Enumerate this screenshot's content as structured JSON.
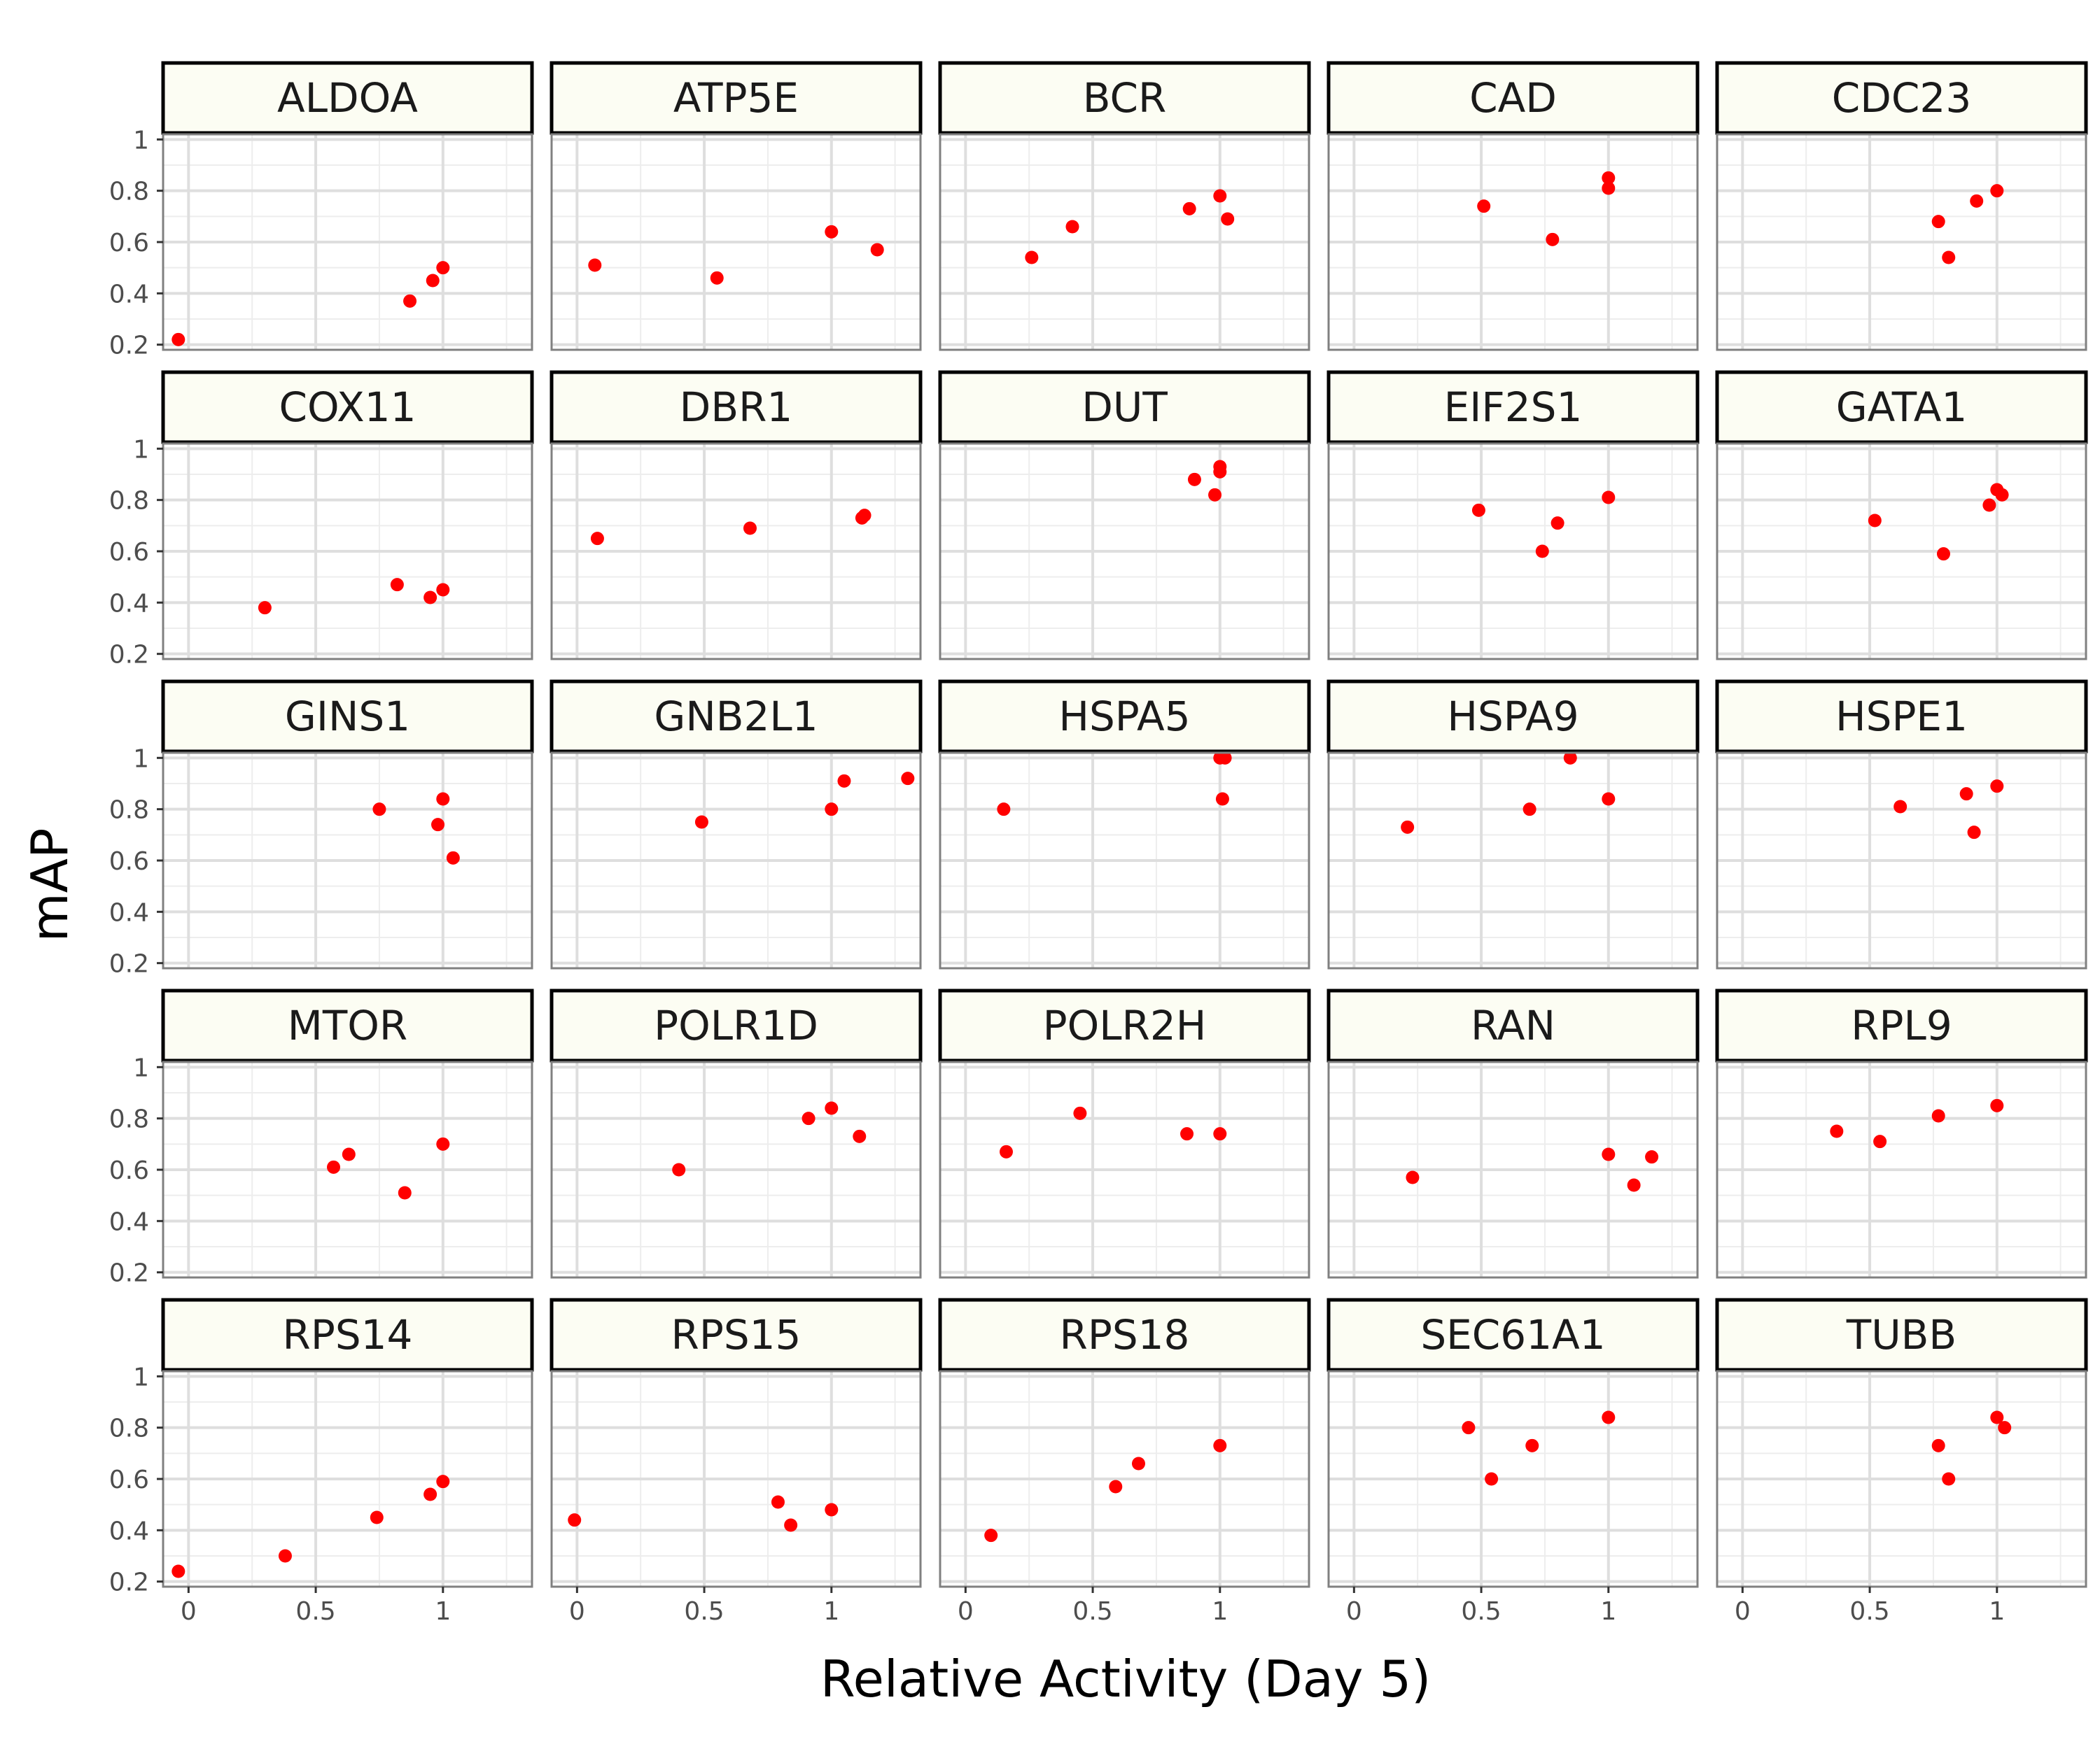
{
  "chart_data": {
    "type": "scatter",
    "xlabel": "Relative Activity (Day 5)",
    "ylabel": "mAP",
    "xlim": [
      -0.1,
      1.35
    ],
    "ylim": [
      0.18,
      1.02
    ],
    "x_ticks": [
      0,
      0.5,
      1
    ],
    "x_tick_labels": [
      "0",
      "0.5",
      "1"
    ],
    "y_ticks": [
      0.2,
      0.4,
      0.6,
      0.8,
      1
    ],
    "y_tick_labels": [
      "0.2",
      "0.4",
      "0.6",
      "0.8",
      "1"
    ],
    "grid": true,
    "point_color": "#ff0000",
    "strip_fill": "#fcfdf3",
    "panels": [
      {
        "name": "ALDOA",
        "points": [
          {
            "x": -0.04,
            "y": 0.22
          },
          {
            "x": 0.87,
            "y": 0.37
          },
          {
            "x": 0.96,
            "y": 0.45
          },
          {
            "x": 1.0,
            "y": 0.5
          }
        ]
      },
      {
        "name": "ATP5E",
        "points": [
          {
            "x": 0.07,
            "y": 0.51
          },
          {
            "x": 0.55,
            "y": 0.46
          },
          {
            "x": 1.0,
            "y": 0.64
          },
          {
            "x": 1.18,
            "y": 0.57
          }
        ]
      },
      {
        "name": "BCR",
        "points": [
          {
            "x": 0.26,
            "y": 0.54
          },
          {
            "x": 0.42,
            "y": 0.66
          },
          {
            "x": 0.88,
            "y": 0.73
          },
          {
            "x": 1.0,
            "y": 0.78
          },
          {
            "x": 1.03,
            "y": 0.69
          }
        ]
      },
      {
        "name": "CAD",
        "points": [
          {
            "x": 0.51,
            "y": 0.74
          },
          {
            "x": 0.78,
            "y": 0.61
          },
          {
            "x": 1.0,
            "y": 0.85
          },
          {
            "x": 1.0,
            "y": 0.81
          }
        ]
      },
      {
        "name": "CDC23",
        "points": [
          {
            "x": 0.77,
            "y": 0.68
          },
          {
            "x": 0.81,
            "y": 0.54
          },
          {
            "x": 0.92,
            "y": 0.76
          },
          {
            "x": 1.0,
            "y": 0.8
          }
        ]
      },
      {
        "name": "COX11",
        "points": [
          {
            "x": 0.3,
            "y": 0.38
          },
          {
            "x": 0.82,
            "y": 0.47
          },
          {
            "x": 0.95,
            "y": 0.42
          },
          {
            "x": 1.0,
            "y": 0.45
          }
        ]
      },
      {
        "name": "DBR1",
        "points": [
          {
            "x": 0.08,
            "y": 0.65
          },
          {
            "x": 0.68,
            "y": 0.69
          },
          {
            "x": 1.12,
            "y": 0.73
          },
          {
            "x": 1.13,
            "y": 0.74
          }
        ]
      },
      {
        "name": "DUT",
        "points": [
          {
            "x": 0.9,
            "y": 0.88
          },
          {
            "x": 0.98,
            "y": 0.82
          },
          {
            "x": 1.0,
            "y": 0.93
          },
          {
            "x": 1.0,
            "y": 0.91
          }
        ]
      },
      {
        "name": "EIF2S1",
        "points": [
          {
            "x": 0.49,
            "y": 0.76
          },
          {
            "x": 0.74,
            "y": 0.6
          },
          {
            "x": 0.8,
            "y": 0.71
          },
          {
            "x": 1.0,
            "y": 0.81
          }
        ]
      },
      {
        "name": "GATA1",
        "points": [
          {
            "x": 0.52,
            "y": 0.72
          },
          {
            "x": 0.79,
            "y": 0.59
          },
          {
            "x": 0.97,
            "y": 0.78
          },
          {
            "x": 1.0,
            "y": 0.84
          },
          {
            "x": 1.02,
            "y": 0.82
          }
        ]
      },
      {
        "name": "GINS1",
        "points": [
          {
            "x": 0.75,
            "y": 0.8
          },
          {
            "x": 0.98,
            "y": 0.74
          },
          {
            "x": 1.0,
            "y": 0.84
          },
          {
            "x": 1.04,
            "y": 0.61
          }
        ]
      },
      {
        "name": "GNB2L1",
        "points": [
          {
            "x": 0.49,
            "y": 0.75
          },
          {
            "x": 1.0,
            "y": 0.8
          },
          {
            "x": 1.05,
            "y": 0.91
          },
          {
            "x": 1.3,
            "y": 0.92
          }
        ]
      },
      {
        "name": "HSPA5",
        "points": [
          {
            "x": 0.15,
            "y": 0.8
          },
          {
            "x": 1.0,
            "y": 1.0
          },
          {
            "x": 1.01,
            "y": 0.84
          },
          {
            "x": 1.02,
            "y": 1.0
          }
        ]
      },
      {
        "name": "HSPA9",
        "points": [
          {
            "x": 0.21,
            "y": 0.73
          },
          {
            "x": 0.69,
            "y": 0.8
          },
          {
            "x": 0.85,
            "y": 1.0
          },
          {
            "x": 1.0,
            "y": 0.84
          }
        ]
      },
      {
        "name": "HSPE1",
        "points": [
          {
            "x": 0.62,
            "y": 0.81
          },
          {
            "x": 0.88,
            "y": 0.86
          },
          {
            "x": 0.91,
            "y": 0.71
          },
          {
            "x": 1.0,
            "y": 0.89
          }
        ]
      },
      {
        "name": "MTOR",
        "points": [
          {
            "x": 0.57,
            "y": 0.61
          },
          {
            "x": 0.63,
            "y": 0.66
          },
          {
            "x": 0.85,
            "y": 0.51
          },
          {
            "x": 1.0,
            "y": 0.7
          }
        ]
      },
      {
        "name": "POLR1D",
        "points": [
          {
            "x": 0.4,
            "y": 0.6
          },
          {
            "x": 0.91,
            "y": 0.8
          },
          {
            "x": 1.0,
            "y": 0.84
          },
          {
            "x": 1.11,
            "y": 0.73
          }
        ]
      },
      {
        "name": "POLR2H",
        "points": [
          {
            "x": 0.16,
            "y": 0.67
          },
          {
            "x": 0.45,
            "y": 0.82
          },
          {
            "x": 0.87,
            "y": 0.74
          },
          {
            "x": 1.0,
            "y": 0.74
          }
        ]
      },
      {
        "name": "RAN",
        "points": [
          {
            "x": 0.23,
            "y": 0.57
          },
          {
            "x": 1.0,
            "y": 0.66
          },
          {
            "x": 1.1,
            "y": 0.54
          },
          {
            "x": 1.17,
            "y": 0.65
          }
        ]
      },
      {
        "name": "RPL9",
        "points": [
          {
            "x": 0.37,
            "y": 0.75
          },
          {
            "x": 0.54,
            "y": 0.71
          },
          {
            "x": 0.77,
            "y": 0.81
          },
          {
            "x": 1.0,
            "y": 0.85
          }
        ]
      },
      {
        "name": "RPS14",
        "points": [
          {
            "x": -0.04,
            "y": 0.24
          },
          {
            "x": 0.38,
            "y": 0.3
          },
          {
            "x": 0.74,
            "y": 0.45
          },
          {
            "x": 0.95,
            "y": 0.54
          },
          {
            "x": 1.0,
            "y": 0.59
          }
        ]
      },
      {
        "name": "RPS15",
        "points": [
          {
            "x": -0.01,
            "y": 0.44
          },
          {
            "x": 0.79,
            "y": 0.51
          },
          {
            "x": 0.84,
            "y": 0.42
          },
          {
            "x": 1.0,
            "y": 0.48
          }
        ]
      },
      {
        "name": "RPS18",
        "points": [
          {
            "x": 0.1,
            "y": 0.38
          },
          {
            "x": 0.59,
            "y": 0.57
          },
          {
            "x": 0.68,
            "y": 0.66
          },
          {
            "x": 1.0,
            "y": 0.73
          }
        ]
      },
      {
        "name": "SEC61A1",
        "points": [
          {
            "x": 0.45,
            "y": 0.8
          },
          {
            "x": 0.54,
            "y": 0.6
          },
          {
            "x": 0.7,
            "y": 0.73
          },
          {
            "x": 1.0,
            "y": 0.84
          }
        ]
      },
      {
        "name": "TUBB",
        "points": [
          {
            "x": 0.77,
            "y": 0.73
          },
          {
            "x": 0.81,
            "y": 0.6
          },
          {
            "x": 1.0,
            "y": 0.84
          },
          {
            "x": 1.03,
            "y": 0.8
          }
        ]
      }
    ]
  }
}
